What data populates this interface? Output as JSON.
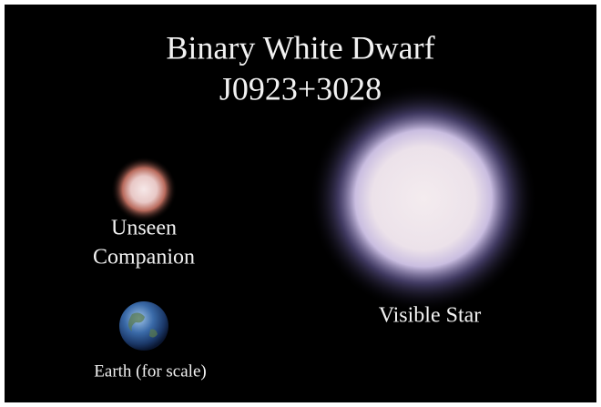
{
  "title": {
    "lines": [
      "Binary White Dwarf",
      "J0923+3028"
    ]
  },
  "labels": {
    "companion": [
      "Unseen",
      "Companion"
    ],
    "visible_star": "Visible Star",
    "earth": "Earth (for scale)"
  }
}
